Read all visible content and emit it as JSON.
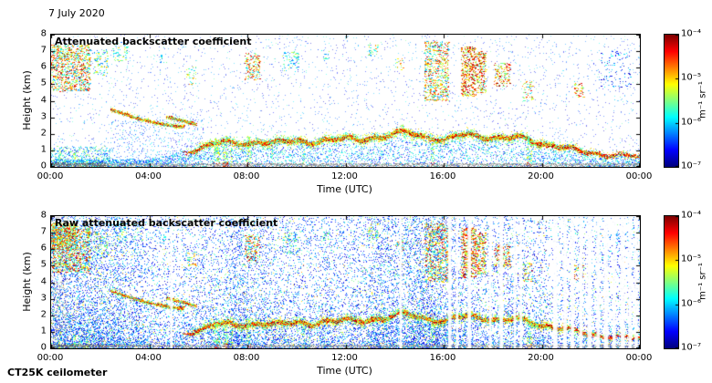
{
  "figure": {
    "date_label": "7 July 2020",
    "footer_label": "CT25K ceilometer"
  },
  "panels": [
    {
      "title": "Attenuated backscatter coefficient",
      "xlabel": "Time (UTC)",
      "ylabel": "Height (km)"
    },
    {
      "title": "Raw attenuated backscatter coefficient",
      "xlabel": "Time (UTC)",
      "ylabel": "Height (km)"
    }
  ],
  "colorbar": {
    "tick_labels": [
      "10⁻⁴",
      "10⁻⁵",
      "10⁻⁶",
      "10⁻⁷"
    ],
    "unit_label": "m⁻¹ sr⁻¹",
    "colormap": "jet"
  },
  "chart_data": {
    "type": "heatmap",
    "title": "CT25K ceilometer attenuated backscatter, 7 July 2020",
    "x": {
      "label": "Time (UTC)",
      "unit": "hours",
      "range": [
        0,
        24
      ],
      "tick_labels": [
        "00:00",
        "04:00",
        "08:00",
        "12:00",
        "16:00",
        "20:00",
        "00:00"
      ]
    },
    "y": {
      "label": "Height (km)",
      "range": [
        0,
        8
      ],
      "tick_labels": [
        "0",
        "1",
        "2",
        "3",
        "4",
        "5",
        "6",
        "7",
        "8"
      ]
    },
    "value": {
      "unit": "m⁻¹ sr⁻¹",
      "scale": "log10",
      "min": 1e-07,
      "max": 0.0001,
      "colorbar_tick_values": [
        0.0001,
        1e-05,
        1e-06,
        1e-07
      ],
      "colormap": "jet"
    },
    "panels": [
      {
        "style": "processed",
        "seed": 1234567
      },
      {
        "style": "raw",
        "seed": 7654321
      }
    ],
    "features": {
      "boundary_layer_top_km": [
        [
          0,
          0.3
        ],
        [
          2,
          0.35
        ],
        [
          3,
          0.4
        ],
        [
          4,
          0.5
        ],
        [
          5,
          0.6
        ],
        [
          5.5,
          0.9
        ],
        [
          6,
          1.2
        ],
        [
          6.5,
          1.45
        ],
        [
          7,
          1.5
        ],
        [
          7.5,
          1.35
        ],
        [
          8,
          1.45
        ],
        [
          8.5,
          1.6
        ],
        [
          9,
          1.5
        ],
        [
          9.5,
          1.45
        ],
        [
          10,
          1.6
        ],
        [
          10.5,
          1.5
        ],
        [
          11,
          1.7
        ],
        [
          11.5,
          1.6
        ],
        [
          12,
          1.75
        ],
        [
          12.5,
          1.65
        ],
        [
          13,
          1.85
        ],
        [
          13.5,
          1.8
        ],
        [
          14,
          2.0
        ],
        [
          14.5,
          2.1
        ],
        [
          15,
          1.95
        ],
        [
          15.5,
          1.8
        ],
        [
          16,
          1.6
        ],
        [
          16.5,
          1.85
        ],
        [
          17,
          2.0
        ],
        [
          17.5,
          1.9
        ],
        [
          18,
          1.8
        ],
        [
          18.5,
          1.7
        ],
        [
          19,
          1.8
        ],
        [
          19.5,
          1.65
        ],
        [
          20,
          1.45
        ],
        [
          20.5,
          1.3
        ],
        [
          21,
          1.1
        ],
        [
          21.5,
          1.0
        ],
        [
          22,
          0.9
        ],
        [
          22.5,
          0.8
        ],
        [
          23,
          0.7
        ],
        [
          24,
          0.6
        ]
      ],
      "boundary_layer_strength": [
        [
          0,
          0
        ],
        [
          5.3,
          0
        ],
        [
          5.8,
          0.5
        ],
        [
          6.3,
          1
        ],
        [
          20.2,
          1
        ],
        [
          21,
          0.7
        ],
        [
          22,
          0.45
        ],
        [
          23,
          0.3
        ],
        [
          24,
          0.25
        ]
      ],
      "aerosol_arcs_km": [
        [
          [
            2.4,
            3.5
          ],
          [
            2.9,
            3.25
          ],
          [
            3.4,
            3.0
          ],
          [
            3.9,
            2.8
          ],
          [
            4.4,
            2.65
          ],
          [
            4.9,
            2.5
          ],
          [
            5.4,
            2.45
          ]
        ],
        [
          [
            4.7,
            3.05
          ],
          [
            5.1,
            2.9
          ],
          [
            5.5,
            2.75
          ],
          [
            5.9,
            2.6
          ]
        ]
      ],
      "clouds": [
        [
          0.0,
          1.6,
          4.6,
          7.4,
          0.85,
          0.25,
          1.0
        ],
        [
          1.7,
          2.3,
          5.5,
          7.1,
          0.35,
          0.2,
          0.7
        ],
        [
          2.5,
          3.1,
          6.4,
          7.6,
          0.3,
          0.2,
          0.65
        ],
        [
          4.4,
          4.7,
          6.3,
          6.9,
          0.2,
          0.2,
          0.5
        ],
        [
          5.5,
          5.9,
          5.0,
          6.1,
          0.3,
          0.3,
          0.8
        ],
        [
          7.9,
          8.5,
          5.3,
          6.9,
          0.65,
          0.3,
          1.0
        ],
        [
          9.4,
          10.1,
          5.8,
          7.0,
          0.3,
          0.15,
          0.6
        ],
        [
          11.0,
          11.35,
          6.4,
          7.1,
          0.25,
          0.2,
          0.6
        ],
        [
          12.9,
          13.3,
          6.7,
          7.6,
          0.35,
          0.25,
          0.75
        ],
        [
          14.0,
          14.35,
          5.9,
          6.6,
          0.3,
          0.3,
          0.8
        ],
        [
          15.2,
          16.2,
          4.0,
          7.6,
          0.7,
          0.25,
          0.95
        ],
        [
          16.7,
          17.3,
          4.3,
          7.3,
          0.95,
          0.45,
          1.0
        ],
        [
          17.3,
          17.7,
          4.5,
          7.0,
          0.85,
          0.4,
          1.0
        ],
        [
          18.05,
          18.7,
          4.9,
          6.3,
          0.65,
          0.4,
          1.0
        ],
        [
          19.2,
          19.6,
          4.0,
          5.2,
          0.4,
          0.3,
          0.9
        ],
        [
          21.3,
          21.7,
          4.2,
          5.1,
          0.5,
          0.4,
          1.0
        ],
        [
          22.3,
          23.6,
          4.8,
          7.0,
          0.12,
          0.05,
          0.4
        ]
      ],
      "precip_streaks": [
        [
          0.35,
          0.06,
          1.0,
          0.5
        ],
        [
          0.95,
          0.05,
          0.9,
          0.5
        ],
        [
          1.45,
          0.05,
          0.8,
          0.45
        ],
        [
          6.75,
          0.13,
          1.7,
          1.0
        ],
        [
          7.1,
          0.1,
          1.5,
          0.9
        ],
        [
          7.35,
          0.06,
          1.2,
          0.6
        ],
        [
          8.05,
          0.1,
          1.9,
          0.85
        ],
        [
          9.0,
          0.05,
          1.2,
          0.4
        ],
        [
          10.3,
          0.06,
          1.5,
          0.5
        ],
        [
          15.55,
          0.08,
          1.9,
          0.75
        ],
        [
          19.5,
          0.1,
          1.7,
          0.8
        ]
      ],
      "raw_data_gaps_hours": [
        [
          4.9,
          0.05
        ],
        [
          14.25,
          0.05
        ],
        [
          16.25,
          0.07
        ],
        [
          16.55,
          0.05
        ],
        [
          17.05,
          0.07
        ],
        [
          17.9,
          0.05
        ],
        [
          18.35,
          0.07
        ],
        [
          18.9,
          0.05
        ],
        [
          19.15,
          0.05
        ],
        [
          20.55,
          0.09
        ],
        [
          20.95,
          0.07
        ],
        [
          21.25,
          0.07
        ],
        [
          21.6,
          0.07
        ],
        [
          21.95,
          0.09
        ],
        [
          22.3,
          0.07
        ],
        [
          22.62,
          0.09
        ],
        [
          22.95,
          0.07
        ],
        [
          23.3,
          0.09
        ],
        [
          23.6,
          0.07
        ],
        [
          23.85,
          0.07
        ]
      ],
      "raw_saturation_blob": [
        0.0,
        1.0,
        6.0,
        7.6
      ],
      "raw_left_column_hours": [
        0,
        0.7
      ]
    }
  }
}
